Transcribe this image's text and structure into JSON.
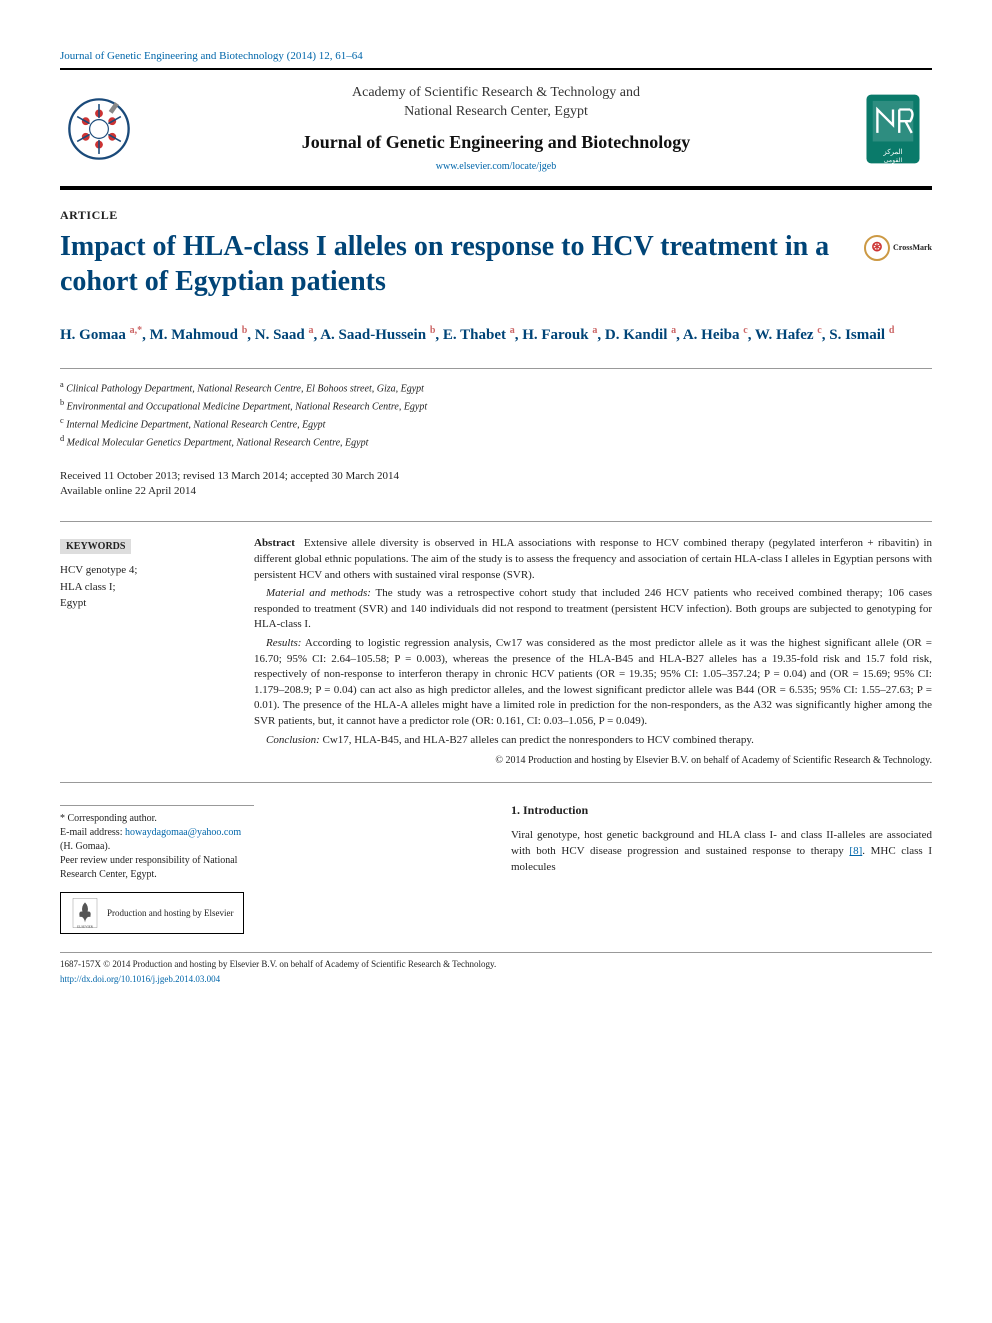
{
  "journal_ref": "Journal of Genetic Engineering and Biotechnology (2014) 12, 61–64",
  "header": {
    "academy_line1": "Academy of Scientific Research & Technology and",
    "academy_line2": "National Research Center, Egypt",
    "journal_name": "Journal of Genetic Engineering and Biotechnology",
    "url": "www.elsevier.com/locate/jgeb"
  },
  "article_label": "ARTICLE",
  "title": "Impact of HLA-class I alleles on response to HCV treatment in a cohort of Egyptian patients",
  "crossmark_label": "CrossMark",
  "authors_html": "H. Gomaa <sup>a,*</sup>, M. Mahmoud <sup>b</sup>, N. Saad <sup>a</sup>, A. Saad-Hussein <sup>b</sup>, E. Thabet <sup>a</sup>, H. Farouk <sup>a</sup>, D. Kandil <sup>a</sup>, A. Heiba <sup>c</sup>, W. Hafez <sup>c</sup>, S. Ismail <sup>d</sup>",
  "affiliations": [
    {
      "sup": "a",
      "text": "Clinical Pathology Department, National Research Centre, El Bohoos street, Giza, Egypt"
    },
    {
      "sup": "b",
      "text": "Environmental and Occupational Medicine Department, National Research Centre, Egypt"
    },
    {
      "sup": "c",
      "text": "Internal Medicine Department, National Research Centre, Egypt"
    },
    {
      "sup": "d",
      "text": "Medical Molecular Genetics Department, National Research Centre, Egypt"
    }
  ],
  "dates_line1": "Received 11 October 2013; revised 13 March 2014; accepted 30 March 2014",
  "dates_line2": "Available online 22 April 2014",
  "keywords": {
    "head": "KEYWORDS",
    "items": [
      "HCV genotype 4;",
      "HLA class I;",
      "Egypt"
    ]
  },
  "abstract": {
    "label": "Abstract",
    "intro": "Extensive allele diversity is observed in HLA associations with response to HCV combined therapy (pegylated interferon + ribavitin) in different global ethnic populations. The aim of the study is to assess the frequency and association of certain HLA-class I alleles in Egyptian persons with persistent HCV and others with sustained viral response (SVR).",
    "methods_label": "Material and methods:",
    "methods": "The study was a retrospective cohort study that included 246 HCV patients who received combined therapy; 106 cases responded to treatment (SVR) and 140 individuals did not respond to treatment (persistent HCV infection). Both groups are subjected to genotyping for HLA-class I.",
    "results_label": "Results:",
    "results": "According to logistic regression analysis, Cw17 was considered as the most predictor allele as it was the highest significant allele (OR = 16.70; 95% CI: 2.64–105.58; P = 0.003), whereas the presence of the HLA-B45 and HLA-B27 alleles has a 19.35-fold risk and 15.7 fold risk, respectively of non-response to interferon therapy in chronic HCV patients (OR = 19.35; 95% CI: 1.05–357.24; P = 0.04) and (OR = 15.69; 95% CI: 1.179–208.9; P = 0.04) can act also as high predictor alleles, and the lowest significant predictor allele was B44 (OR = 6.535; 95% CI: 1.55–27.63; P = 0.01). The presence of the HLA-A alleles might have a limited role in prediction for the non-responders, as the A32 was significantly higher among the SVR patients, but, it cannot have a predictor role (OR: 0.161, CI: 0.03–1.056, P = 0.049).",
    "conclusion_label": "Conclusion:",
    "conclusion": "Cw17, HLA-B45, and HLA-B27 alleles can predict the nonresponders to HCV combined therapy.",
    "copyright": "© 2014 Production and hosting by Elsevier B.V. on behalf of Academy of Scientific Research & Technology."
  },
  "footer": {
    "corr": "* Corresponding author.",
    "email_label": "E-mail address:",
    "email": "howaydagomaa@yahoo.com",
    "email_name": "(H. Gomaa).",
    "peer": "Peer review under responsibility of National Research Center, Egypt.",
    "prod": "Production and hosting by Elsevier"
  },
  "intro": {
    "head": "1. Introduction",
    "text": "Viral genotype, host genetic background and HLA class I- and class II-alleles are associated with both HCV disease progression and sustained response to therapy [8]. MHC class I molecules"
  },
  "bottom": {
    "issn": "1687-157X © 2014 Production and hosting by Elsevier B.V. on behalf of Academy of Scientific Research & Technology.",
    "doi": "http://dx.doi.org/10.1016/j.jgeb.2014.03.004"
  },
  "colors": {
    "title_color": "#004477",
    "link_color": "#0066aa",
    "rule_color": "#000000",
    "light_rule": "#999999",
    "kw_bg": "#dddddd"
  }
}
